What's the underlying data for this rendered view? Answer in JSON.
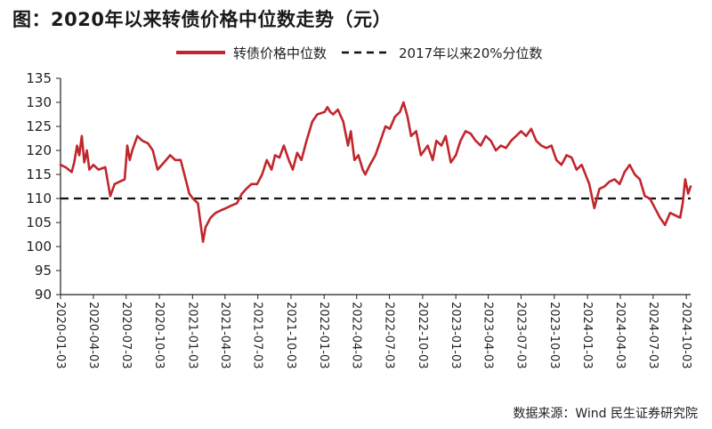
{
  "title": "图：2020年以来转债价格中位数走势（元）",
  "source": "数据来源：Wind 民生证券研究院",
  "colors": {
    "series": "#c0262c",
    "reference": "#111111",
    "axis": "#222222"
  },
  "chart_data": {
    "type": "line",
    "ylim": [
      90,
      135
    ],
    "yticks": [
      90,
      95,
      100,
      105,
      110,
      115,
      120,
      125,
      130,
      135
    ],
    "x_range": [
      "2020-01-03",
      "2024-10-15"
    ],
    "xticks": [
      "2020-01-03",
      "2020-04-03",
      "2020-07-03",
      "2020-10-03",
      "2021-01-03",
      "2021-04-03",
      "2021-07-03",
      "2021-10-03",
      "2022-01-03",
      "2022-04-03",
      "2022-07-03",
      "2022-10-03",
      "2023-01-03",
      "2023-04-03",
      "2023-07-03",
      "2023-10-03",
      "2024-01-03",
      "2024-04-03",
      "2024-07-03",
      "2024-10-03"
    ],
    "legend": {
      "series_label": "转债价格中位数",
      "reference_label": "2017年以来20%分位数",
      "placement": "top-center"
    },
    "reference_line": 110,
    "series": [
      {
        "name": "转债价格中位数",
        "points": [
          [
            "2020-01-03",
            117.0
          ],
          [
            "2020-01-17",
            116.5
          ],
          [
            "2020-02-03",
            115.5
          ],
          [
            "2020-02-10",
            117.5
          ],
          [
            "2020-02-18",
            121.0
          ],
          [
            "2020-02-24",
            119.0
          ],
          [
            "2020-03-02",
            123.0
          ],
          [
            "2020-03-09",
            117.5
          ],
          [
            "2020-03-16",
            120.0
          ],
          [
            "2020-03-23",
            116.0
          ],
          [
            "2020-04-03",
            117.0
          ],
          [
            "2020-04-17",
            116.0
          ],
          [
            "2020-05-06",
            116.5
          ],
          [
            "2020-05-20",
            110.5
          ],
          [
            "2020-06-01",
            113.0
          ],
          [
            "2020-06-15",
            113.5
          ],
          [
            "2020-06-29",
            114.0
          ],
          [
            "2020-07-06",
            121.0
          ],
          [
            "2020-07-13",
            118.0
          ],
          [
            "2020-07-20",
            120.0
          ],
          [
            "2020-08-03",
            123.0
          ],
          [
            "2020-08-17",
            122.0
          ],
          [
            "2020-09-01",
            121.5
          ],
          [
            "2020-09-15",
            120.0
          ],
          [
            "2020-09-28",
            116.0
          ],
          [
            "2020-10-16",
            117.5
          ],
          [
            "2020-11-02",
            119.0
          ],
          [
            "2020-11-16",
            118.0
          ],
          [
            "2020-12-01",
            118.0
          ],
          [
            "2020-12-15",
            114.0
          ],
          [
            "2020-12-25",
            111.0
          ],
          [
            "2021-01-04",
            110.0
          ],
          [
            "2021-01-18",
            109.0
          ],
          [
            "2021-01-25",
            105.0
          ],
          [
            "2021-02-01",
            101.0
          ],
          [
            "2021-02-08",
            104.0
          ],
          [
            "2021-02-22",
            106.0
          ],
          [
            "2021-03-08",
            107.0
          ],
          [
            "2021-03-22",
            107.5
          ],
          [
            "2021-04-06",
            108.0
          ],
          [
            "2021-04-20",
            108.5
          ],
          [
            "2021-05-06",
            109.0
          ],
          [
            "2021-05-20",
            111.0
          ],
          [
            "2021-06-01",
            112.0
          ],
          [
            "2021-06-15",
            113.0
          ],
          [
            "2021-07-01",
            113.0
          ],
          [
            "2021-07-15",
            115.0
          ],
          [
            "2021-07-28",
            118.0
          ],
          [
            "2021-08-10",
            116.0
          ],
          [
            "2021-08-20",
            119.0
          ],
          [
            "2021-09-01",
            118.5
          ],
          [
            "2021-09-13",
            121.0
          ],
          [
            "2021-09-27",
            118.0
          ],
          [
            "2021-10-08",
            116.0
          ],
          [
            "2021-10-20",
            119.5
          ],
          [
            "2021-11-01",
            118.0
          ],
          [
            "2021-11-15",
            122.0
          ],
          [
            "2021-12-01",
            126.0
          ],
          [
            "2021-12-15",
            127.5
          ],
          [
            "2022-01-04",
            128.0
          ],
          [
            "2022-01-12",
            129.0
          ],
          [
            "2022-01-20",
            128.0
          ],
          [
            "2022-01-28",
            127.5
          ],
          [
            "2022-02-10",
            128.5
          ],
          [
            "2022-02-25",
            126.0
          ],
          [
            "2022-03-10",
            121.0
          ],
          [
            "2022-03-18",
            124.0
          ],
          [
            "2022-03-28",
            118.0
          ],
          [
            "2022-04-08",
            119.0
          ],
          [
            "2022-04-20",
            116.0
          ],
          [
            "2022-04-27",
            115.0
          ],
          [
            "2022-05-10",
            117.0
          ],
          [
            "2022-05-25",
            119.0
          ],
          [
            "2022-06-08",
            122.0
          ],
          [
            "2022-06-22",
            125.0
          ],
          [
            "2022-07-04",
            124.5
          ],
          [
            "2022-07-18",
            127.0
          ],
          [
            "2022-08-01",
            128.0
          ],
          [
            "2022-08-11",
            130.0
          ],
          [
            "2022-08-22",
            127.0
          ],
          [
            "2022-09-01",
            123.0
          ],
          [
            "2022-09-15",
            124.0
          ],
          [
            "2022-09-28",
            119.0
          ],
          [
            "2022-10-17",
            121.0
          ],
          [
            "2022-10-31",
            118.0
          ],
          [
            "2022-11-10",
            122.0
          ],
          [
            "2022-11-24",
            121.0
          ],
          [
            "2022-12-06",
            123.0
          ],
          [
            "2022-12-20",
            117.5
          ],
          [
            "2023-01-03",
            119.0
          ],
          [
            "2023-01-16",
            122.0
          ],
          [
            "2023-01-30",
            124.0
          ],
          [
            "2023-02-13",
            123.5
          ],
          [
            "2023-02-27",
            122.0
          ],
          [
            "2023-03-13",
            121.0
          ],
          [
            "2023-03-27",
            123.0
          ],
          [
            "2023-04-10",
            122.0
          ],
          [
            "2023-04-24",
            120.0
          ],
          [
            "2023-05-08",
            121.0
          ],
          [
            "2023-05-22",
            120.5
          ],
          [
            "2023-06-05",
            122.0
          ],
          [
            "2023-06-19",
            123.0
          ],
          [
            "2023-07-03",
            124.0
          ],
          [
            "2023-07-17",
            123.0
          ],
          [
            "2023-07-31",
            124.5
          ],
          [
            "2023-08-14",
            122.0
          ],
          [
            "2023-08-28",
            121.0
          ],
          [
            "2023-09-11",
            120.5
          ],
          [
            "2023-09-25",
            121.0
          ],
          [
            "2023-10-09",
            118.0
          ],
          [
            "2023-10-23",
            117.0
          ],
          [
            "2023-11-06",
            119.0
          ],
          [
            "2023-11-20",
            118.5
          ],
          [
            "2023-12-04",
            116.0
          ],
          [
            "2023-12-18",
            117.0
          ],
          [
            "2024-01-08",
            113.0
          ],
          [
            "2024-01-22",
            108.0
          ],
          [
            "2024-02-05",
            112.0
          ],
          [
            "2024-02-19",
            112.5
          ],
          [
            "2024-03-04",
            113.5
          ],
          [
            "2024-03-18",
            114.0
          ],
          [
            "2024-04-01",
            113.0
          ],
          [
            "2024-04-15",
            115.5
          ],
          [
            "2024-04-29",
            117.0
          ],
          [
            "2024-05-13",
            115.0
          ],
          [
            "2024-05-27",
            114.0
          ],
          [
            "2024-06-10",
            110.5
          ],
          [
            "2024-06-24",
            110.0
          ],
          [
            "2024-07-08",
            108.0
          ],
          [
            "2024-07-22",
            106.0
          ],
          [
            "2024-08-05",
            104.5
          ],
          [
            "2024-08-19",
            107.0
          ],
          [
            "2024-09-02",
            106.5
          ],
          [
            "2024-09-16",
            106.0
          ],
          [
            "2024-09-23",
            109.0
          ],
          [
            "2024-09-30",
            114.0
          ],
          [
            "2024-10-08",
            111.0
          ],
          [
            "2024-10-15",
            112.5
          ]
        ]
      }
    ]
  }
}
